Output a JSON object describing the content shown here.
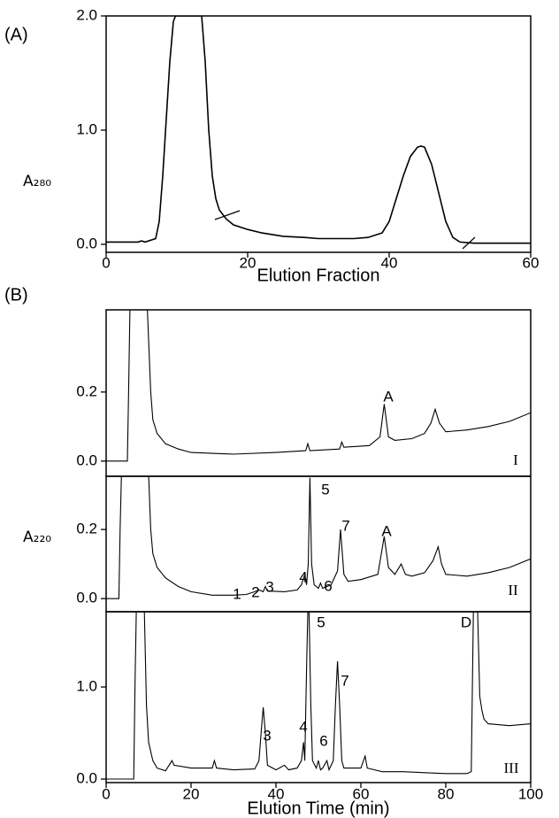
{
  "chart_data": [
    {
      "type": "line",
      "panel": "(A)",
      "xlabel": "Elution Fraction",
      "ylabel": "A₂₈₀",
      "color": "#000000",
      "xlim": [
        0,
        60
      ],
      "ylim": [
        -0.07,
        2.0
      ],
      "xticks": [
        0,
        20,
        40,
        60
      ],
      "yticks": [
        {
          "value": 0,
          "label": "0.0"
        },
        {
          "value": 1,
          "label": "1.0"
        },
        {
          "value": 2,
          "label": "2.0"
        }
      ],
      "x": [
        0,
        4.5,
        5,
        5.5,
        7,
        7.5,
        8,
        8.5,
        9,
        9.5,
        9.8,
        13.5,
        14,
        14.5,
        15,
        15.5,
        16,
        17,
        18,
        20,
        22,
        25,
        28,
        30,
        35,
        37,
        39,
        40,
        41,
        42,
        43,
        44,
        44.5,
        45,
        46,
        47,
        48,
        49,
        50,
        52,
        55,
        60
      ],
      "values": [
        0.02,
        0.02,
        0.03,
        0.02,
        0.05,
        0.2,
        0.6,
        1.1,
        1.6,
        1.95,
        2.0,
        2.0,
        1.6,
        1.0,
        0.6,
        0.4,
        0.3,
        0.22,
        0.17,
        0.13,
        0.1,
        0.07,
        0.06,
        0.05,
        0.05,
        0.06,
        0.1,
        0.2,
        0.4,
        0.6,
        0.77,
        0.85,
        0.86,
        0.85,
        0.7,
        0.45,
        0.2,
        0.06,
        0.02,
        0.01,
        0.01,
        0.01
      ],
      "annotations": []
    },
    {
      "type": "line",
      "panel": "(B)",
      "label": "I",
      "color": "#000000",
      "xlim": [
        0,
        100
      ],
      "ylim": [
        -0.044,
        0.438
      ],
      "yticks": [
        {
          "value": 0,
          "label": "0.0"
        },
        0.2
      ],
      "x": [
        0,
        5,
        5.3,
        5.6,
        9.7,
        10.5,
        11,
        12,
        14,
        17,
        20,
        30,
        40,
        47,
        47.5,
        48,
        55,
        55.5,
        56,
        62,
        64.5,
        65.5,
        66.5,
        68,
        72,
        75,
        76.5,
        77.5,
        78.5,
        80,
        85,
        90,
        95,
        100
      ],
      "values": [
        0.0,
        0.0,
        0.2,
        0.44,
        0.44,
        0.2,
        0.12,
        0.08,
        0.05,
        0.035,
        0.025,
        0.02,
        0.025,
        0.03,
        0.05,
        0.03,
        0.035,
        0.055,
        0.04,
        0.045,
        0.07,
        0.165,
        0.07,
        0.06,
        0.065,
        0.08,
        0.11,
        0.15,
        0.11,
        0.085,
        0.09,
        0.1,
        0.115,
        0.14
      ],
      "annotations": [
        "A"
      ]
    },
    {
      "type": "line",
      "label": "II",
      "ylabel": "A₂₂₀",
      "color": "#000000",
      "xlim": [
        0,
        100
      ],
      "ylim": [
        -0.038,
        0.354
      ],
      "yticks": [
        {
          "value": 0,
          "label": "0.0"
        },
        0.2
      ],
      "x": [
        0,
        3,
        3.3,
        3.6,
        10,
        10.5,
        11,
        12,
        14,
        17,
        20,
        25,
        30,
        33,
        35,
        36,
        37,
        37.5,
        38,
        42,
        45,
        46,
        46.8,
        47.2,
        47.6,
        48,
        48.4,
        49,
        50,
        50.5,
        51,
        53,
        54.5,
        55.2,
        56,
        57,
        60,
        64,
        65.5,
        66.5,
        68,
        69.5,
        70.5,
        72,
        75,
        77,
        78.2,
        79,
        80,
        85,
        90,
        95,
        100
      ],
      "values": [
        0.0,
        0.0,
        0.2,
        0.36,
        0.36,
        0.2,
        0.13,
        0.09,
        0.06,
        0.035,
        0.02,
        0.01,
        0.01,
        0.012,
        0.02,
        0.025,
        0.02,
        0.035,
        0.022,
        0.02,
        0.025,
        0.04,
        0.07,
        0.04,
        0.1,
        0.35,
        0.1,
        0.04,
        0.03,
        0.045,
        0.03,
        0.04,
        0.08,
        0.2,
        0.07,
        0.05,
        0.055,
        0.07,
        0.18,
        0.09,
        0.07,
        0.1,
        0.07,
        0.065,
        0.075,
        0.11,
        0.15,
        0.1,
        0.07,
        0.065,
        0.075,
        0.09,
        0.115
      ],
      "annotations": [
        "1",
        "2",
        "3",
        "4",
        "5",
        "6",
        "7",
        "A"
      ]
    },
    {
      "type": "line",
      "label": "III",
      "xlabel": "Elution Time (min)",
      "color": "#000000",
      "xlim": [
        0,
        100
      ],
      "ylim": [
        -0.038,
        1.817
      ],
      "xticks": [
        0,
        20,
        40,
        60,
        80,
        100
      ],
      "yticks": [
        {
          "value": 0,
          "label": "0.0"
        },
        {
          "value": 1,
          "label": "1.0"
        }
      ],
      "x": [
        0,
        6.5,
        6.8,
        7.1,
        9,
        9.5,
        10,
        11,
        12,
        14,
        15.5,
        16,
        20,
        25,
        25.5,
        26,
        30,
        35,
        36,
        36.5,
        37,
        37.5,
        38,
        40,
        42,
        43,
        45,
        46,
        46.5,
        46.8,
        47.2,
        47.5,
        47.8,
        48.2,
        48.6,
        49.5,
        50,
        50.5,
        51,
        52,
        52.5,
        53.5,
        54,
        54.5,
        55,
        55.5,
        56,
        60,
        61,
        61.5,
        65,
        70,
        75,
        80,
        85,
        86,
        86.5,
        87.5,
        88,
        88.5,
        89,
        90,
        95,
        100
      ],
      "values": [
        0.0,
        0.0,
        1.0,
        1.82,
        1.82,
        0.8,
        0.4,
        0.2,
        0.12,
        0.09,
        0.2,
        0.15,
        0.12,
        0.12,
        0.2,
        0.12,
        0.1,
        0.11,
        0.2,
        0.5,
        0.78,
        0.5,
        0.15,
        0.1,
        0.15,
        0.1,
        0.12,
        0.2,
        0.4,
        0.2,
        1.2,
        1.82,
        1.82,
        0.8,
        0.2,
        0.12,
        0.2,
        0.1,
        0.12,
        0.2,
        0.1,
        0.2,
        0.8,
        1.28,
        0.8,
        0.2,
        0.12,
        0.12,
        0.25,
        0.12,
        0.08,
        0.08,
        0.07,
        0.06,
        0.06,
        0.08,
        1.82,
        1.82,
        0.9,
        0.75,
        0.65,
        0.6,
        0.58,
        0.6
      ],
      "annotations": [
        "3",
        "4",
        "5",
        "6",
        "7",
        "D"
      ]
    }
  ]
}
